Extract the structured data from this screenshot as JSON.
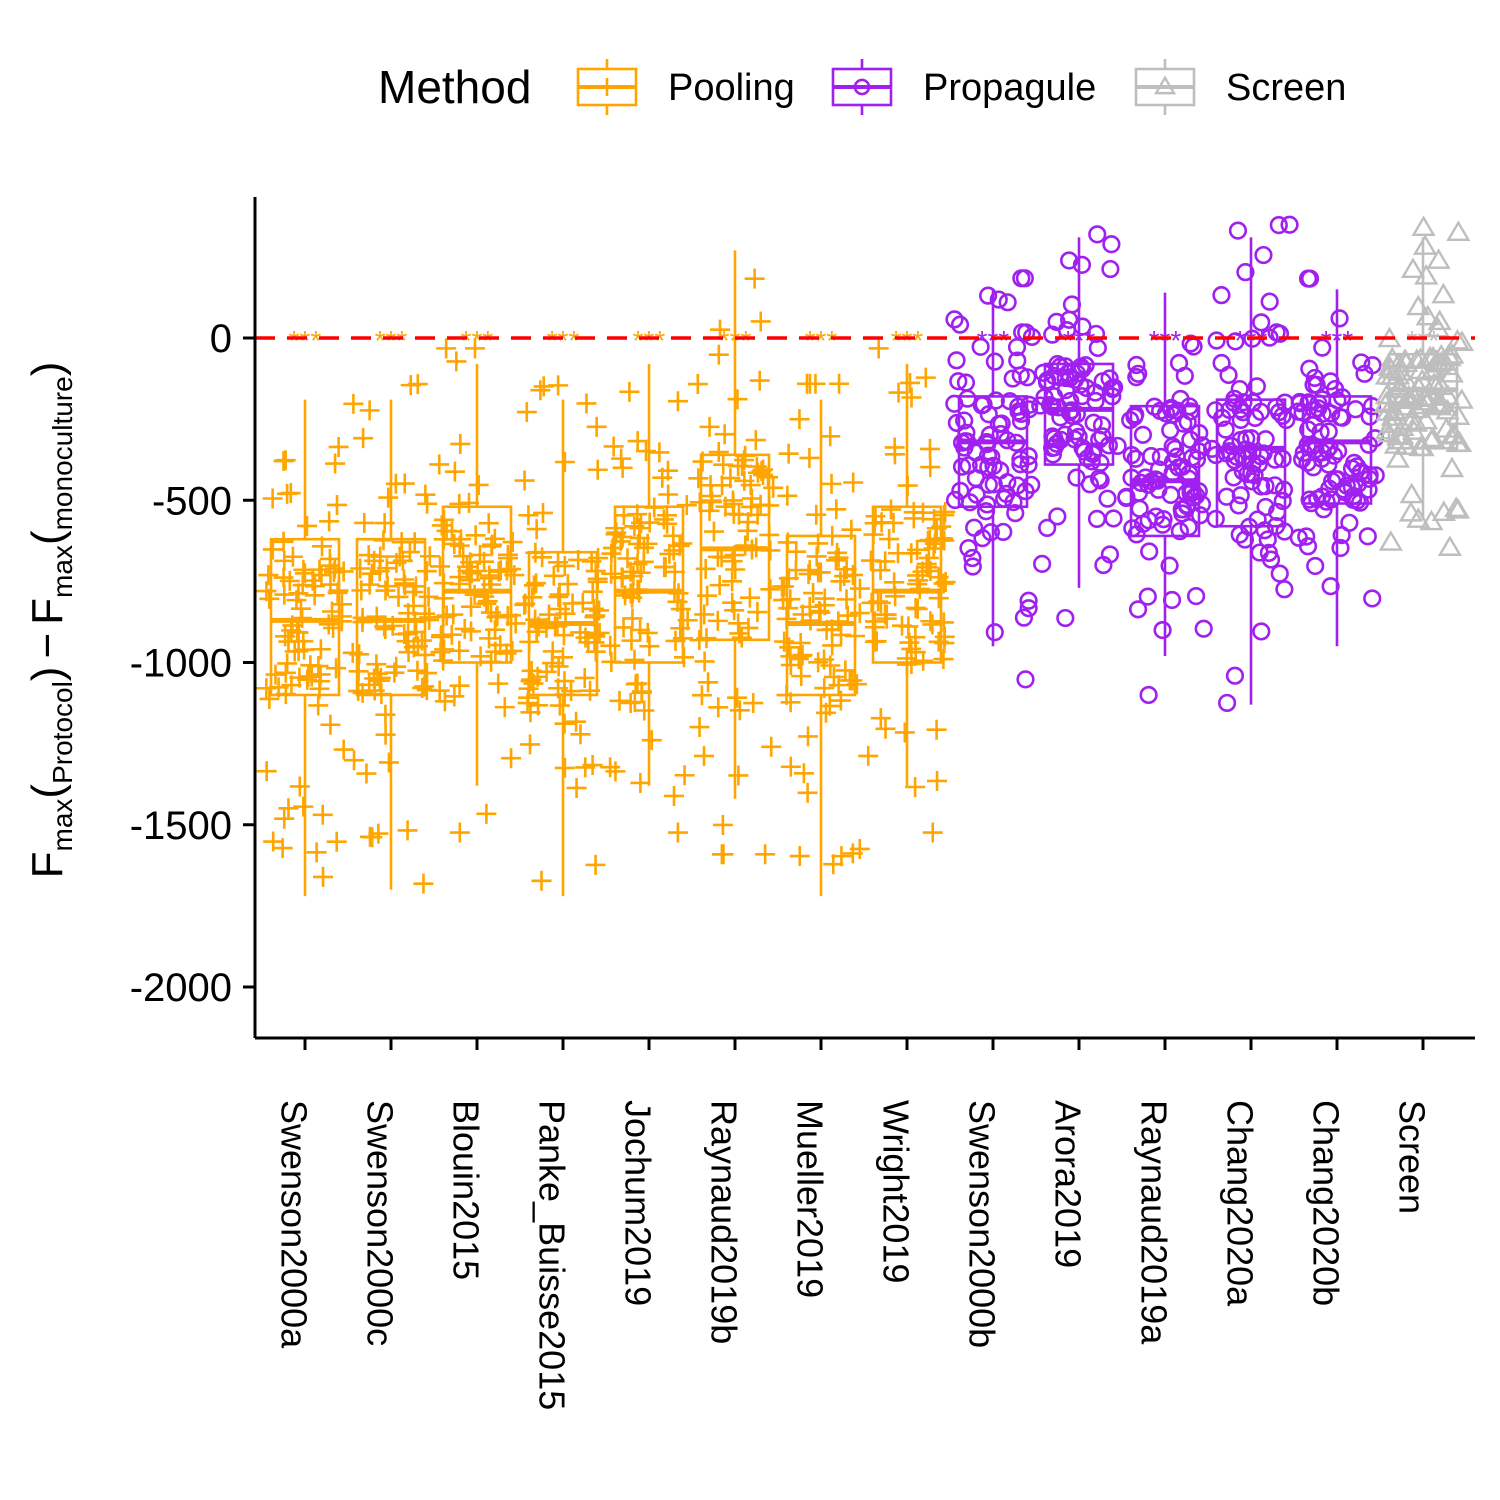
{
  "legend": {
    "title": "Method",
    "items": [
      {
        "label": "Pooling",
        "color": "#FFA500",
        "shape": "plus"
      },
      {
        "label": "Propagule",
        "color": "#A020F0",
        "shape": "circle"
      },
      {
        "label": "Screen",
        "color": "#BEBEBE",
        "shape": "triangle"
      }
    ]
  },
  "ylabel": {
    "main1": "F",
    "sub1": "max",
    "arg1": "Protocol",
    "minus": "−",
    "main2": "F",
    "sub2": "max",
    "arg2": "monoculture"
  },
  "chart_data": {
    "type": "box",
    "title": "",
    "ylim": [
      -2150,
      430
    ],
    "yticks": [
      0,
      -500,
      -1000,
      -1500,
      -2000
    ],
    "ytick_labels": [
      "0",
      "-500",
      "-1000",
      "-1500",
      "-2000"
    ],
    "reference_line": {
      "y": 0,
      "color": "#FF0000",
      "style": "dashed"
    },
    "significance_label": "***",
    "groups": [
      {
        "name": "Swenson2000a",
        "method": "Pooling",
        "q1": -1100,
        "median": -870,
        "q3": -620,
        "whisker_low": -1720,
        "whisker_high": -190
      },
      {
        "name": "Swenson2000c",
        "method": "Pooling",
        "q1": -1100,
        "median": -870,
        "q3": -620,
        "whisker_low": -1700,
        "whisker_high": -190
      },
      {
        "name": "Blouin2015",
        "method": "Pooling",
        "q1": -1000,
        "median": -780,
        "q3": -520,
        "whisker_low": -1380,
        "whisker_high": -80
      },
      {
        "name": "Panke_Buisse2015",
        "method": "Pooling",
        "q1": -1100,
        "median": -880,
        "q3": -660,
        "whisker_low": -1720,
        "whisker_high": -190
      },
      {
        "name": "Jochum2019",
        "method": "Pooling",
        "q1": -1000,
        "median": -780,
        "q3": -520,
        "whisker_low": -1380,
        "whisker_high": -80
      },
      {
        "name": "Raynaud2019b",
        "method": "Pooling",
        "q1": -930,
        "median": -650,
        "q3": -360,
        "whisker_low": -1420,
        "whisker_high": 270
      },
      {
        "name": "Mueller2019",
        "method": "Pooling",
        "q1": -1100,
        "median": -880,
        "q3": -610,
        "whisker_low": -1720,
        "whisker_high": -190
      },
      {
        "name": "Wright2019",
        "method": "Pooling",
        "q1": -1000,
        "median": -780,
        "q3": -520,
        "whisker_low": -1380,
        "whisker_high": -80
      },
      {
        "name": "Swenson2000b",
        "method": "Propagule",
        "q1": -520,
        "median": -320,
        "q3": -180,
        "whisker_low": -950,
        "whisker_high": 150
      },
      {
        "name": "Arora2019",
        "method": "Propagule",
        "q1": -390,
        "median": -220,
        "q3": -80,
        "whisker_low": -770,
        "whisker_high": 310
      },
      {
        "name": "Raynaud2019a",
        "method": "Propagule",
        "q1": -610,
        "median": -440,
        "q3": -210,
        "whisker_low": -980,
        "whisker_high": 140
      },
      {
        "name": "Chang2020a",
        "method": "Propagule",
        "q1": -580,
        "median": -340,
        "q3": -190,
        "whisker_low": -1130,
        "whisker_high": 310
      },
      {
        "name": "Chang2020b",
        "method": "Propagule",
        "q1": -510,
        "median": -320,
        "q3": -180,
        "whisker_low": -950,
        "whisker_high": 150
      },
      {
        "name": "Screen",
        "method": "Screen",
        "q1": -340,
        "median": -160,
        "q3": -50,
        "whisker_low": -560,
        "whisker_high": 310
      }
    ]
  }
}
